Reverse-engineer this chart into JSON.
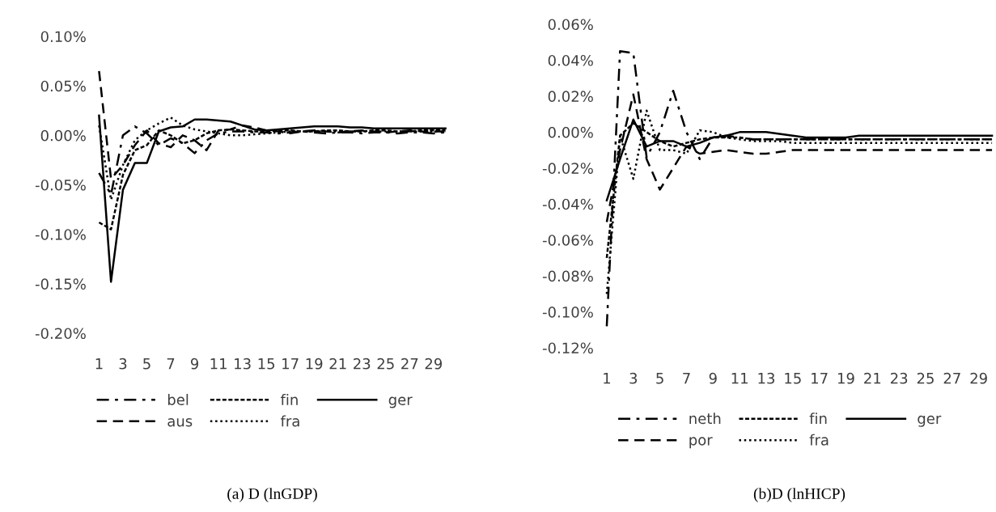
{
  "chart_data": [
    {
      "type": "line",
      "annotations": [
        "(a) D (lnGDP)"
      ],
      "categories": [
        "1",
        null,
        "3",
        null,
        "5",
        null,
        "7",
        null,
        "9",
        null,
        "11",
        null,
        "13",
        null,
        "15",
        null,
        "17",
        null,
        "19",
        null,
        "21",
        null,
        "23",
        null,
        "25",
        null,
        "27",
        null,
        "29",
        null
      ],
      "ylim": [
        -0.2,
        0.1
      ],
      "yticks": [
        {
          "value": -0.2,
          "label": "-0.20%"
        },
        {
          "value": -0.15,
          "label": "-0.15%"
        },
        {
          "value": -0.1,
          "label": "-0.10%"
        },
        {
          "value": -0.05,
          "label": "-0.05%"
        },
        {
          "value": 0,
          "label": "0.00%"
        },
        {
          "value": 0.05,
          "label": "0.05%"
        },
        {
          "value": 0.1,
          "label": "0.10%"
        }
      ],
      "grid": false,
      "legend": "bottom",
      "series": [
        {
          "name": "bel",
          "color": "#000000",
          "line_style": "dashdot",
          "values": [
            -0.038,
            -0.06,
            0.0,
            0.009,
            0.002,
            -0.01,
            -0.003,
            -0.008,
            -0.018,
            -0.005,
            0.002,
            0.004,
            0.004,
            0.003,
            0.003,
            0.002,
            0.003,
            0.004,
            0.003,
            0.002,
            0.003,
            0.003,
            0.002,
            0.003,
            0.003,
            0.002,
            0.003,
            0.003,
            0.002,
            0.003
          ]
        },
        {
          "name": "aus",
          "color": "#000000",
          "line_style": "dashed",
          "values": [
            0.065,
            -0.044,
            -0.03,
            -0.01,
            0.005,
            -0.008,
            -0.012,
            0.0,
            -0.005,
            -0.015,
            0.005,
            0.006,
            0.01,
            0.008,
            0.005,
            0.004,
            0.002,
            0.004,
            0.005,
            0.004,
            0.003,
            0.004,
            0.005,
            0.004,
            0.003,
            0.004,
            0.005,
            0.004,
            0.004,
            0.004
          ]
        },
        {
          "name": "fin",
          "color": "#000000",
          "line_style": "densely_dashed",
          "values": [
            -0.088,
            -0.095,
            -0.04,
            -0.015,
            -0.01,
            0.005,
            0.0,
            -0.008,
            -0.005,
            0.002,
            0.005,
            0.006,
            0.005,
            0.004,
            0.004,
            0.005,
            0.005,
            0.004,
            0.004,
            0.005,
            0.005,
            0.004,
            0.004,
            0.005,
            0.005,
            0.004,
            0.004,
            0.005,
            0.005,
            0.005
          ]
        },
        {
          "name": "fra",
          "color": "#000000",
          "line_style": "dotted",
          "values": [
            0.01,
            -0.065,
            -0.03,
            -0.005,
            0.005,
            0.012,
            0.018,
            0.01,
            0.006,
            0.004,
            0.002,
            0.0,
            0.0,
            0.001,
            0.002,
            0.003,
            0.004,
            0.004,
            0.004,
            0.004,
            0.004,
            0.004,
            0.004,
            0.004,
            0.004,
            0.004,
            0.004,
            0.004,
            0.004,
            0.004
          ]
        },
        {
          "name": "ger",
          "color": "#000000",
          "line_style": "solid",
          "values": [
            0.02,
            -0.148,
            -0.055,
            -0.028,
            -0.028,
            0.004,
            0.008,
            0.009,
            0.016,
            0.016,
            0.015,
            0.014,
            0.01,
            0.006,
            0.005,
            0.006,
            0.007,
            0.008,
            0.009,
            0.009,
            0.009,
            0.008,
            0.008,
            0.007,
            0.007,
            0.007,
            0.007,
            0.007,
            0.007,
            0.007
          ]
        }
      ]
    },
    {
      "type": "line",
      "annotations": [
        "(b)D (lnHICP)"
      ],
      "categories": [
        "1",
        null,
        "3",
        null,
        "5",
        null,
        "7",
        null,
        "9",
        null,
        "11",
        null,
        "13",
        null,
        "15",
        null,
        "17",
        null,
        "19",
        null,
        "21",
        null,
        "23",
        null,
        "25",
        null,
        "27",
        null,
        "29",
        null
      ],
      "ylim": [
        -0.12,
        0.06
      ],
      "yticks": [
        {
          "value": -0.12,
          "label": "-0.12%"
        },
        {
          "value": -0.1,
          "label": "-0.10%"
        },
        {
          "value": -0.08,
          "label": "-0.08%"
        },
        {
          "value": -0.06,
          "label": "-0.06%"
        },
        {
          "value": -0.04,
          "label": "-0.04%"
        },
        {
          "value": -0.02,
          "label": "-0.02%"
        },
        {
          "value": 0,
          "label": "0.00%"
        },
        {
          "value": 0.02,
          "label": "0.02%"
        },
        {
          "value": 0.04,
          "label": "0.04%"
        },
        {
          "value": 0.06,
          "label": "0.06%"
        }
      ],
      "grid": false,
      "legend": "bottom",
      "series": [
        {
          "name": "neth",
          "color": "#000000",
          "line_style": "dashdot",
          "values": [
            -0.108,
            0.045,
            0.044,
            -0.014,
            0.0,
            0.023,
            0.0,
            -0.015,
            -0.003,
            -0.002,
            -0.003,
            -0.004,
            -0.004,
            -0.004,
            -0.004,
            -0.004,
            -0.004,
            -0.004,
            -0.004,
            -0.004,
            -0.004,
            -0.004,
            -0.004,
            -0.004,
            -0.004,
            -0.004,
            -0.004,
            -0.004,
            -0.004,
            -0.004
          ]
        },
        {
          "name": "por",
          "color": "#000000",
          "line_style": "dashed",
          "values": [
            -0.05,
            -0.01,
            0.021,
            -0.015,
            -0.032,
            -0.02,
            -0.008,
            -0.012,
            -0.011,
            -0.01,
            -0.011,
            -0.012,
            -0.012,
            -0.011,
            -0.01,
            -0.01,
            -0.01,
            -0.01,
            -0.01,
            -0.01,
            -0.01,
            -0.01,
            -0.01,
            -0.01,
            -0.01,
            -0.01,
            -0.01,
            -0.01,
            -0.01,
            -0.01
          ]
        },
        {
          "name": "fin",
          "color": "#000000",
          "line_style": "densely_dashed",
          "values": [
            -0.07,
            -0.002,
            0.005,
            0.0,
            -0.005,
            -0.008,
            -0.006,
            -0.004,
            -0.003,
            -0.003,
            -0.003,
            -0.004,
            -0.004,
            -0.004,
            -0.004,
            -0.004,
            -0.004,
            -0.004,
            -0.004,
            -0.004,
            -0.004,
            -0.004,
            -0.004,
            -0.004,
            -0.004,
            -0.004,
            -0.004,
            -0.004,
            -0.004,
            -0.004
          ]
        },
        {
          "name": "fra",
          "color": "#000000",
          "line_style": "dotted",
          "values": [
            -0.09,
            -0.002,
            -0.026,
            0.012,
            -0.01,
            -0.01,
            -0.012,
            0.001,
            0.0,
            -0.003,
            -0.004,
            -0.005,
            -0.005,
            -0.005,
            -0.006,
            -0.006,
            -0.006,
            -0.006,
            -0.006,
            -0.006,
            -0.006,
            -0.006,
            -0.006,
            -0.006,
            -0.006,
            -0.006,
            -0.006,
            -0.006,
            -0.006,
            -0.006
          ]
        },
        {
          "name": "ger",
          "color": "#000000",
          "line_style": "solid",
          "values": [
            -0.038,
            -0.015,
            0.007,
            -0.008,
            -0.005,
            -0.005,
            -0.008,
            -0.006,
            -0.003,
            -0.002,
            0.0,
            0.0,
            0.0,
            -0.001,
            -0.002,
            -0.003,
            -0.003,
            -0.003,
            -0.003,
            -0.002,
            -0.002,
            -0.002,
            -0.002,
            -0.002,
            -0.002,
            -0.002,
            -0.002,
            -0.002,
            -0.002,
            -0.002
          ]
        }
      ]
    }
  ]
}
